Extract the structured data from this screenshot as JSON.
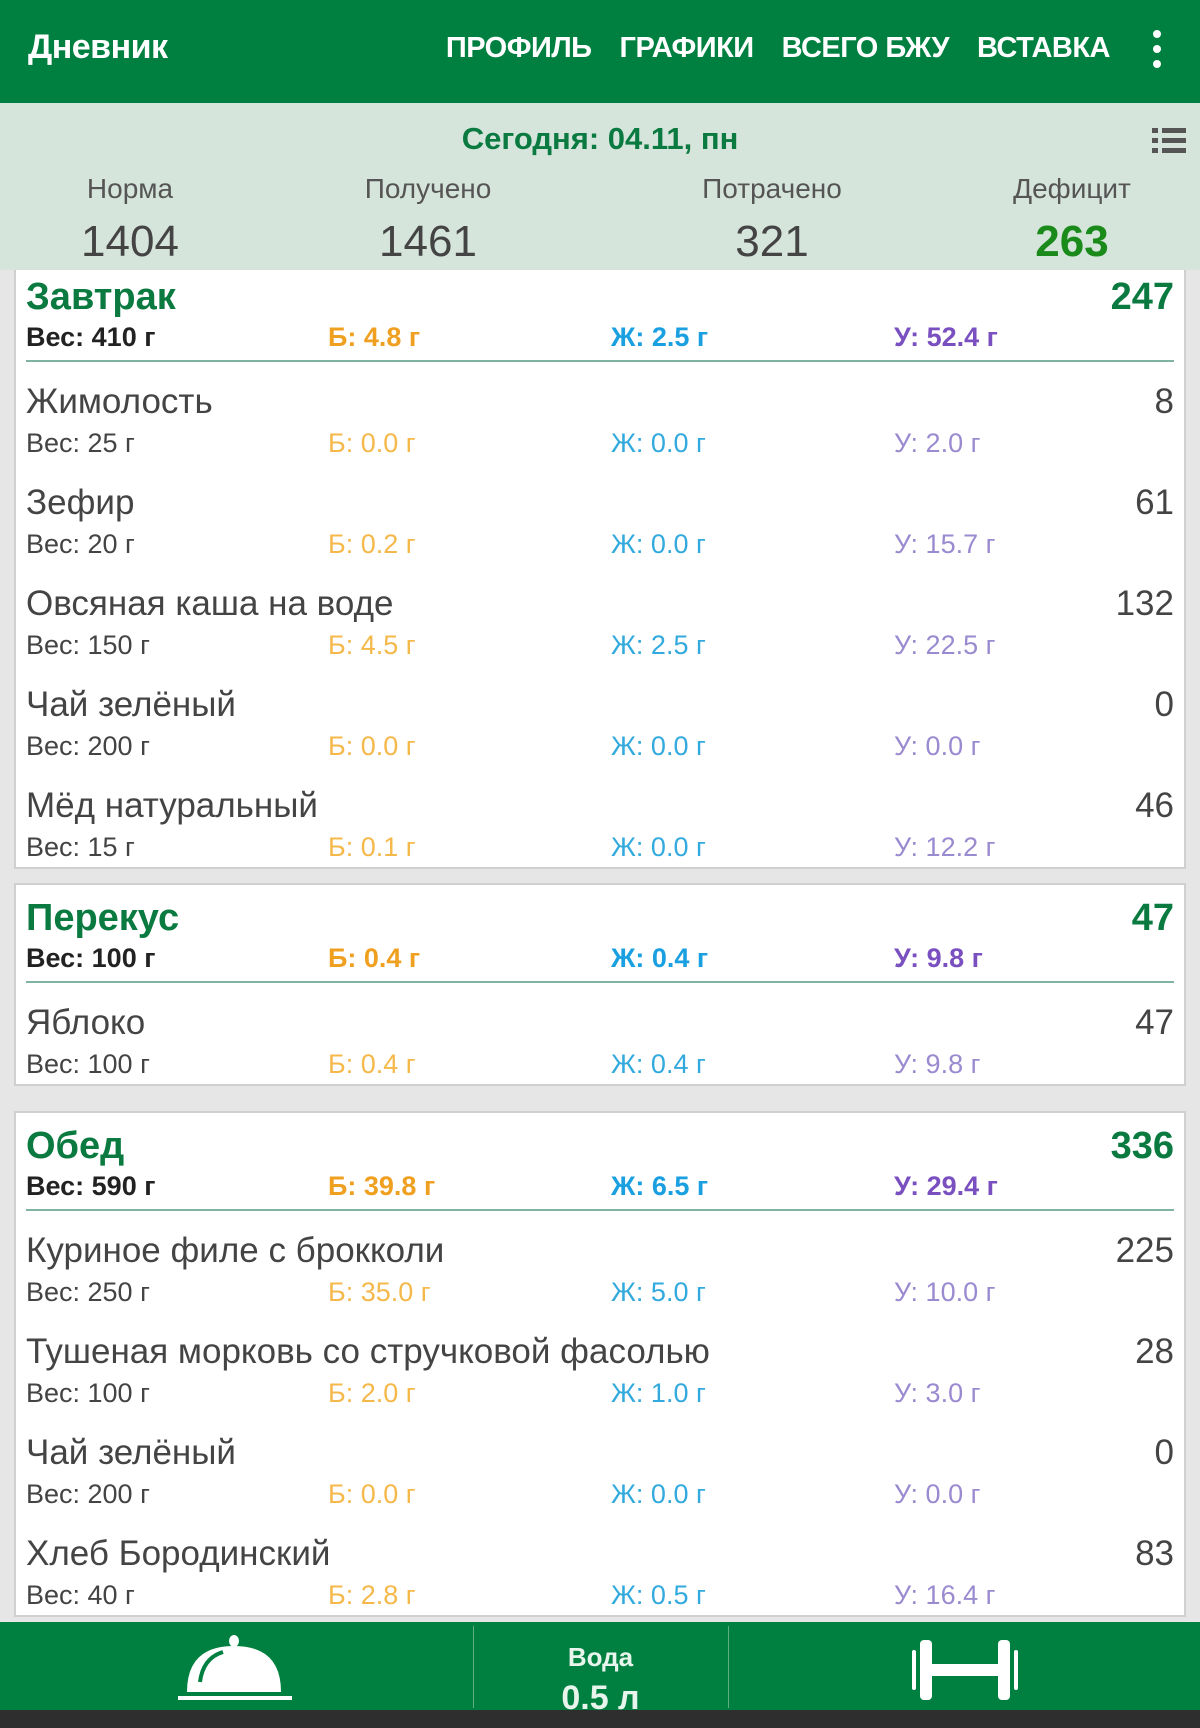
{
  "appbar": {
    "title": "Дневник",
    "menu": [
      "ПРОФИЛЬ",
      "ГРАФИКИ",
      "ВСЕГО БЖУ",
      "ВСТАВКА"
    ]
  },
  "summary": {
    "date": "Сегодня: 04.11, пн",
    "stats": [
      {
        "label": "Норма",
        "value": "1404"
      },
      {
        "label": "Получено",
        "value": "1461"
      },
      {
        "label": "Потрачено",
        "value": "321"
      },
      {
        "label": "Дефицит",
        "value": "263"
      }
    ]
  },
  "meals": [
    {
      "name": "Завтрак",
      "kcal": "247",
      "weight": "Вес: 410 г",
      "p": "Б: 4.8 г",
      "f": "Ж: 2.5 г",
      "c": "У: 52.4 г",
      "items": [
        {
          "name": "Жимолость",
          "kcal": "8",
          "weight": "Вес: 25 г",
          "p": "Б: 0.0 г",
          "f": "Ж: 0.0 г",
          "c": "У: 2.0 г"
        },
        {
          "name": "Зефир",
          "kcal": "61",
          "weight": "Вес: 20 г",
          "p": "Б: 0.2 г",
          "f": "Ж: 0.0 г",
          "c": "У: 15.7 г"
        },
        {
          "name": "Овсяная каша на воде",
          "kcal": "132",
          "weight": "Вес: 150 г",
          "p": "Б: 4.5 г",
          "f": "Ж: 2.5 г",
          "c": "У: 22.5 г"
        },
        {
          "name": "Чай зелёный",
          "kcal": "0",
          "weight": "Вес: 200 г",
          "p": "Б: 0.0 г",
          "f": "Ж: 0.0 г",
          "c": "У: 0.0 г"
        },
        {
          "name": "Мёд натуральный",
          "kcal": "46",
          "weight": "Вес: 15 г",
          "p": "Б: 0.1 г",
          "f": "Ж: 0.0 г",
          "c": "У: 12.2 г"
        }
      ]
    },
    {
      "name": "Перекус",
      "kcal": "47",
      "weight": "Вес: 100 г",
      "p": "Б: 0.4 г",
      "f": "Ж: 0.4 г",
      "c": "У: 9.8 г",
      "items": [
        {
          "name": "Яблоко",
          "kcal": "47",
          "weight": "Вес: 100 г",
          "p": "Б: 0.4 г",
          "f": "Ж: 0.4 г",
          "c": "У: 9.8 г"
        }
      ]
    },
    {
      "name": "Обед",
      "kcal": "336",
      "weight": "Вес: 590 г",
      "p": "Б: 39.8 г",
      "f": "Ж: 6.5 г",
      "c": "У: 29.4 г",
      "items": [
        {
          "name": "Куриное филе с брокколи",
          "kcal": "225",
          "weight": "Вес: 250 г",
          "p": "Б: 35.0 г",
          "f": "Ж: 5.0 г",
          "c": "У: 10.0 г"
        },
        {
          "name": "Тушеная морковь со стручковой фасолью",
          "kcal": "28",
          "weight": "Вес: 100 г",
          "p": "Б: 2.0 г",
          "f": "Ж: 1.0 г",
          "c": "У: 3.0 г"
        },
        {
          "name": "Чай зелёный",
          "kcal": "0",
          "weight": "Вес: 200 г",
          "p": "Б: 0.0 г",
          "f": "Ж: 0.0 г",
          "c": "У: 0.0 г"
        },
        {
          "name": "Хлеб Бородинский",
          "kcal": "83",
          "weight": "Вес: 40 г",
          "p": "Б: 2.8 г",
          "f": "Ж: 0.5 г",
          "c": "У: 16.4 г"
        }
      ]
    }
  ],
  "bottom": {
    "water_label": "Вода",
    "water_value": "0.5 л"
  }
}
